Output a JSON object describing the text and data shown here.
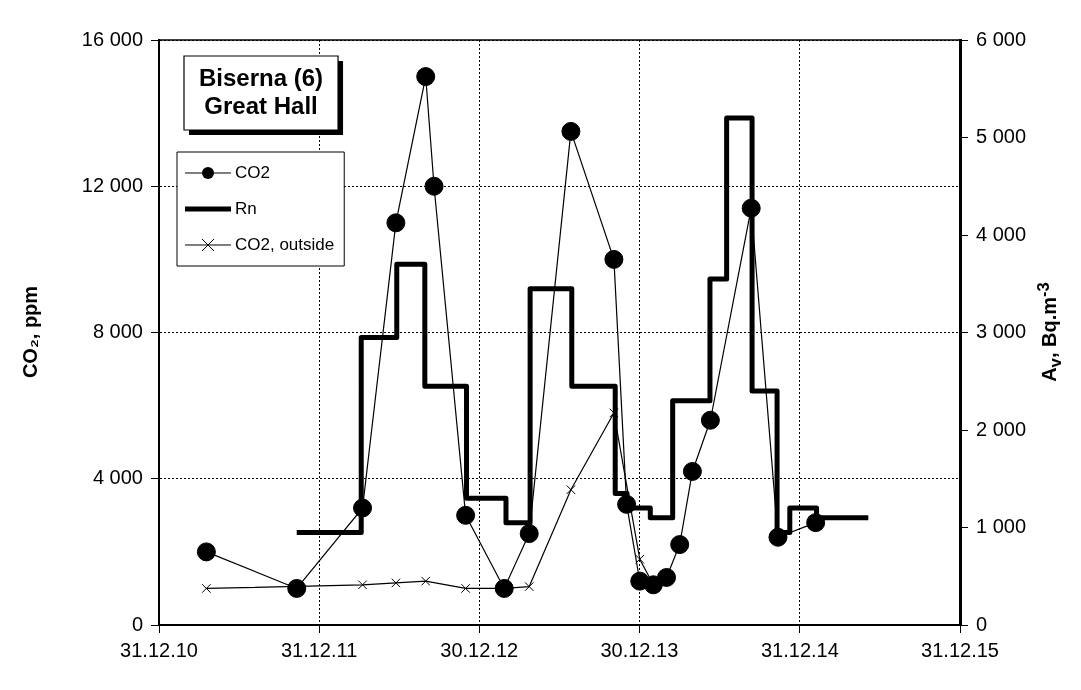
{
  "chart_data": {
    "type": "line",
    "title": "Biserna (6) Great Hall",
    "ylabel": "CO₂, ppm",
    "y2label": "A$_{v}$, Bq.m$^{-3}$",
    "xlim": [
      "2010-12-31",
      "2015-12-31"
    ],
    "xticks": [
      {
        "value": "2010-12-31",
        "label": "31.12.10"
      },
      {
        "value": "2011-12-31",
        "label": "31.12.11"
      },
      {
        "value": "2012-12-30",
        "label": "30.12.12"
      },
      {
        "value": "2013-12-30",
        "label": "30.12.13"
      },
      {
        "value": "2014-12-31",
        "label": "31.12.14"
      },
      {
        "value": "2015-12-31",
        "label": "31.12.15"
      }
    ],
    "ylim": [
      0,
      16000
    ],
    "yticks": [
      {
        "value": 0,
        "label": "0"
      },
      {
        "value": 4000,
        "label": "4 000"
      },
      {
        "value": 8000,
        "label": "8 000"
      },
      {
        "value": 12000,
        "label": "12 000"
      },
      {
        "value": 16000,
        "label": "16 000"
      }
    ],
    "y2lim": [
      0,
      6000
    ],
    "y2ticks": [
      {
        "value": 0,
        "label": "0"
      },
      {
        "value": 1000,
        "label": "1 000"
      },
      {
        "value": 2000,
        "label": "2 000"
      },
      {
        "value": 3000,
        "label": "3 000"
      },
      {
        "value": 4000,
        "label": "4 000"
      },
      {
        "value": 5000,
        "label": "5 000"
      },
      {
        "value": 6000,
        "label": "6 000"
      }
    ],
    "grid": true,
    "legend": "top left",
    "series": [
      {
        "name": "CO2",
        "color": "#000000",
        "marker": "circle",
        "x": [
          "2011-04-18",
          "2011-11-10",
          "2012-04-08",
          "2012-06-23",
          "2012-08-30",
          "2012-09-18",
          "2012-11-29",
          "2013-02-25",
          "2013-04-23",
          "2013-07-27",
          "2013-11-02",
          "2013-12-01",
          "2013-12-31",
          "2014-01-31",
          "2014-03-02",
          "2014-04-01",
          "2014-04-30",
          "2014-06-10",
          "2014-09-11",
          "2014-11-11",
          "2015-02-05"
        ],
        "values": [
          2000,
          1000,
          3200,
          11000,
          15000,
          12000,
          3000,
          1000,
          2500,
          13500,
          10000,
          3300,
          1200,
          1100,
          1300,
          2200,
          4200,
          5600,
          11400,
          2400,
          2800
        ]
      },
      {
        "name": "Rn",
        "type": "step",
        "axis": "y2",
        "color": "#000000",
        "marker": "none",
        "x": [
          "2011-11-10",
          "2012-04-05",
          "2012-06-25",
          "2012-08-28",
          "2012-12-01",
          "2013-03-01",
          "2013-04-25",
          "2013-07-29",
          "2013-11-05",
          "2013-12-02",
          "2014-01-24",
          "2014-03-16",
          "2014-06-09",
          "2014-07-17",
          "2014-09-13",
          "2014-11-09",
          "2014-12-08",
          "2015-02-07",
          "2015-06-05"
        ],
        "values": [
          950,
          2950,
          3700,
          2450,
          1300,
          1050,
          3450,
          2450,
          1350,
          1200,
          1100,
          2300,
          3550,
          5200,
          2400,
          950,
          1200,
          1100,
          1100
        ]
      },
      {
        "name": "CO2, outside",
        "color": "#000000",
        "marker": "cross",
        "x": [
          "2011-04-18",
          "2011-11-10",
          "2012-04-08",
          "2012-06-23",
          "2012-08-30",
          "2012-11-29",
          "2013-02-25",
          "2013-04-23",
          "2013-07-27",
          "2013-11-02",
          "2013-12-31",
          "2014-01-31"
        ],
        "values": [
          1000,
          null,
          1100,
          1150,
          1200,
          1000,
          1000,
          1050,
          3700,
          5800,
          1800,
          1100
        ]
      }
    ]
  }
}
